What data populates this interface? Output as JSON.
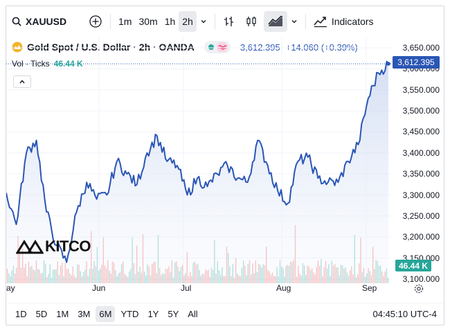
{
  "toolbar": {
    "symbol": "XAUUSD",
    "intervals": [
      "1m",
      "30m",
      "1h",
      "2h"
    ],
    "active_interval": "2h",
    "indicators_label": "Indicators"
  },
  "legend": {
    "title": "Gold Spot / U.S. Dollar · 2h · OANDA",
    "price": "3,612.395",
    "change": "+14.060 (+0.39%)",
    "vol_label": "Vol · Ticks",
    "vol_value": "46.44 K"
  },
  "price_axis": {
    "ticks": [
      "3,650.000",
      "3,600.000",
      "3,550.000",
      "3,500.000",
      "3,450.000",
      "3,400.000",
      "3,350.000",
      "3,300.000",
      "3,250.000",
      "3,200.000",
      "3,150.000",
      "3,100.000"
    ],
    "last_price_tag": "3,612.395",
    "volume_tag": "46.44 K"
  },
  "time_axis": {
    "labels": [
      "May",
      "Jun",
      "Jul",
      "Aug",
      "Sep"
    ]
  },
  "ranges": {
    "items": [
      "1D",
      "5D",
      "1M",
      "3M",
      "6M",
      "YTD",
      "1Y",
      "5Y",
      "All"
    ],
    "active": "6M",
    "clock": "04:45:10 UTC-4"
  },
  "branding": {
    "logo_text": "KITCO"
  },
  "colors": {
    "line": "#2a56b5",
    "fill": "#dfe6f5",
    "vol_up": "#26a69a",
    "vol_down": "#ef5350",
    "accent": "#2a56b5"
  },
  "chart_data": {
    "type": "area",
    "title": "Gold Spot / U.S. Dollar · 2h · OANDA",
    "xlabel": "",
    "ylabel": "",
    "x_labels": [
      "May",
      "Jun",
      "Jul",
      "Aug",
      "Sep"
    ],
    "ylim": [
      3100,
      3650
    ],
    "series": [
      {
        "name": "XAUUSD",
        "x": [
          "May 1",
          "May 5",
          "May 7",
          "May 9",
          "May 12",
          "May 14",
          "May 16",
          "May 20",
          "May 23",
          "May 26",
          "May 29",
          "Jun 2",
          "Jun 5",
          "Jun 9",
          "Jun 13",
          "Jun 16",
          "Jun 19",
          "Jun 23",
          "Jun 26",
          "Jul 1",
          "Jul 4",
          "Jul 8",
          "Jul 11",
          "Jul 14",
          "Jul 17",
          "Jul 22",
          "Jul 25",
          "Jul 30",
          "Aug 4",
          "Aug 7",
          "Aug 11",
          "Aug 14",
          "Aug 19",
          "Aug 22",
          "Aug 26",
          "Aug 29",
          "Sep 2",
          "Sep 5",
          "Sep 8"
        ],
        "values": [
          3305,
          3230,
          3400,
          3430,
          3260,
          3180,
          3140,
          3260,
          3330,
          3290,
          3300,
          3380,
          3350,
          3325,
          3400,
          3440,
          3380,
          3370,
          3300,
          3340,
          3320,
          3350,
          3370,
          3340,
          3330,
          3430,
          3370,
          3310,
          3280,
          3380,
          3390,
          3340,
          3330,
          3330,
          3380,
          3420,
          3530,
          3590,
          3612
        ]
      }
    ],
    "volume_last": "46.44 K"
  }
}
